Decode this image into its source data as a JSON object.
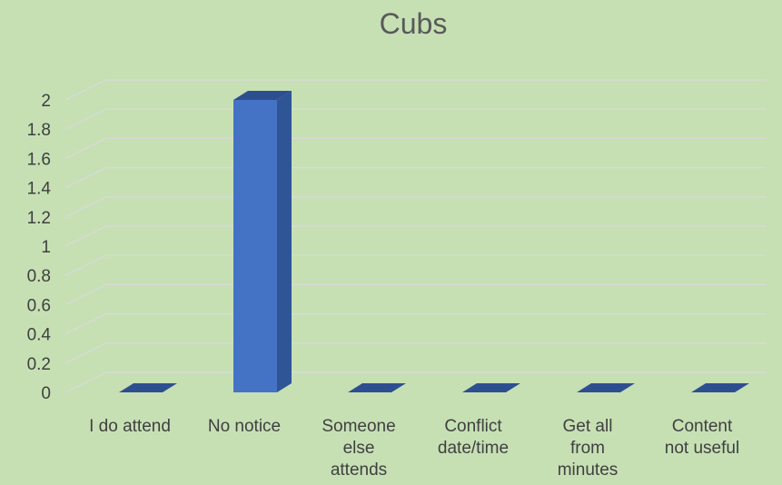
{
  "chart_data": {
    "type": "bar",
    "title": "Cubs",
    "categories": [
      [
        "I do attend"
      ],
      [
        "No notice"
      ],
      [
        "Someone",
        "else",
        "attends"
      ],
      [
        "Conflict",
        "date/time"
      ],
      [
        "Get all",
        "from",
        "minutes"
      ],
      [
        "Content",
        "not useful"
      ]
    ],
    "series": [
      {
        "values": [
          0,
          2,
          0,
          0,
          0,
          0
        ]
      }
    ],
    "ylim": [
      0,
      2
    ],
    "yticks": [
      "0",
      "0.2",
      "0.4",
      "0.6",
      "0.8",
      "1",
      "1.2",
      "1.4",
      "1.6",
      "1.8",
      "2"
    ],
    "xlabel": "",
    "ylabel": "",
    "grid": true,
    "three_d": true,
    "colors": {
      "background": "#c6e0b4",
      "bar_front": "#4472c4",
      "bar_side": "#2f5597",
      "bar_top": "#2e4f8f",
      "grid": "#d9d9d9",
      "text": "#404040",
      "title": "#595959"
    }
  }
}
